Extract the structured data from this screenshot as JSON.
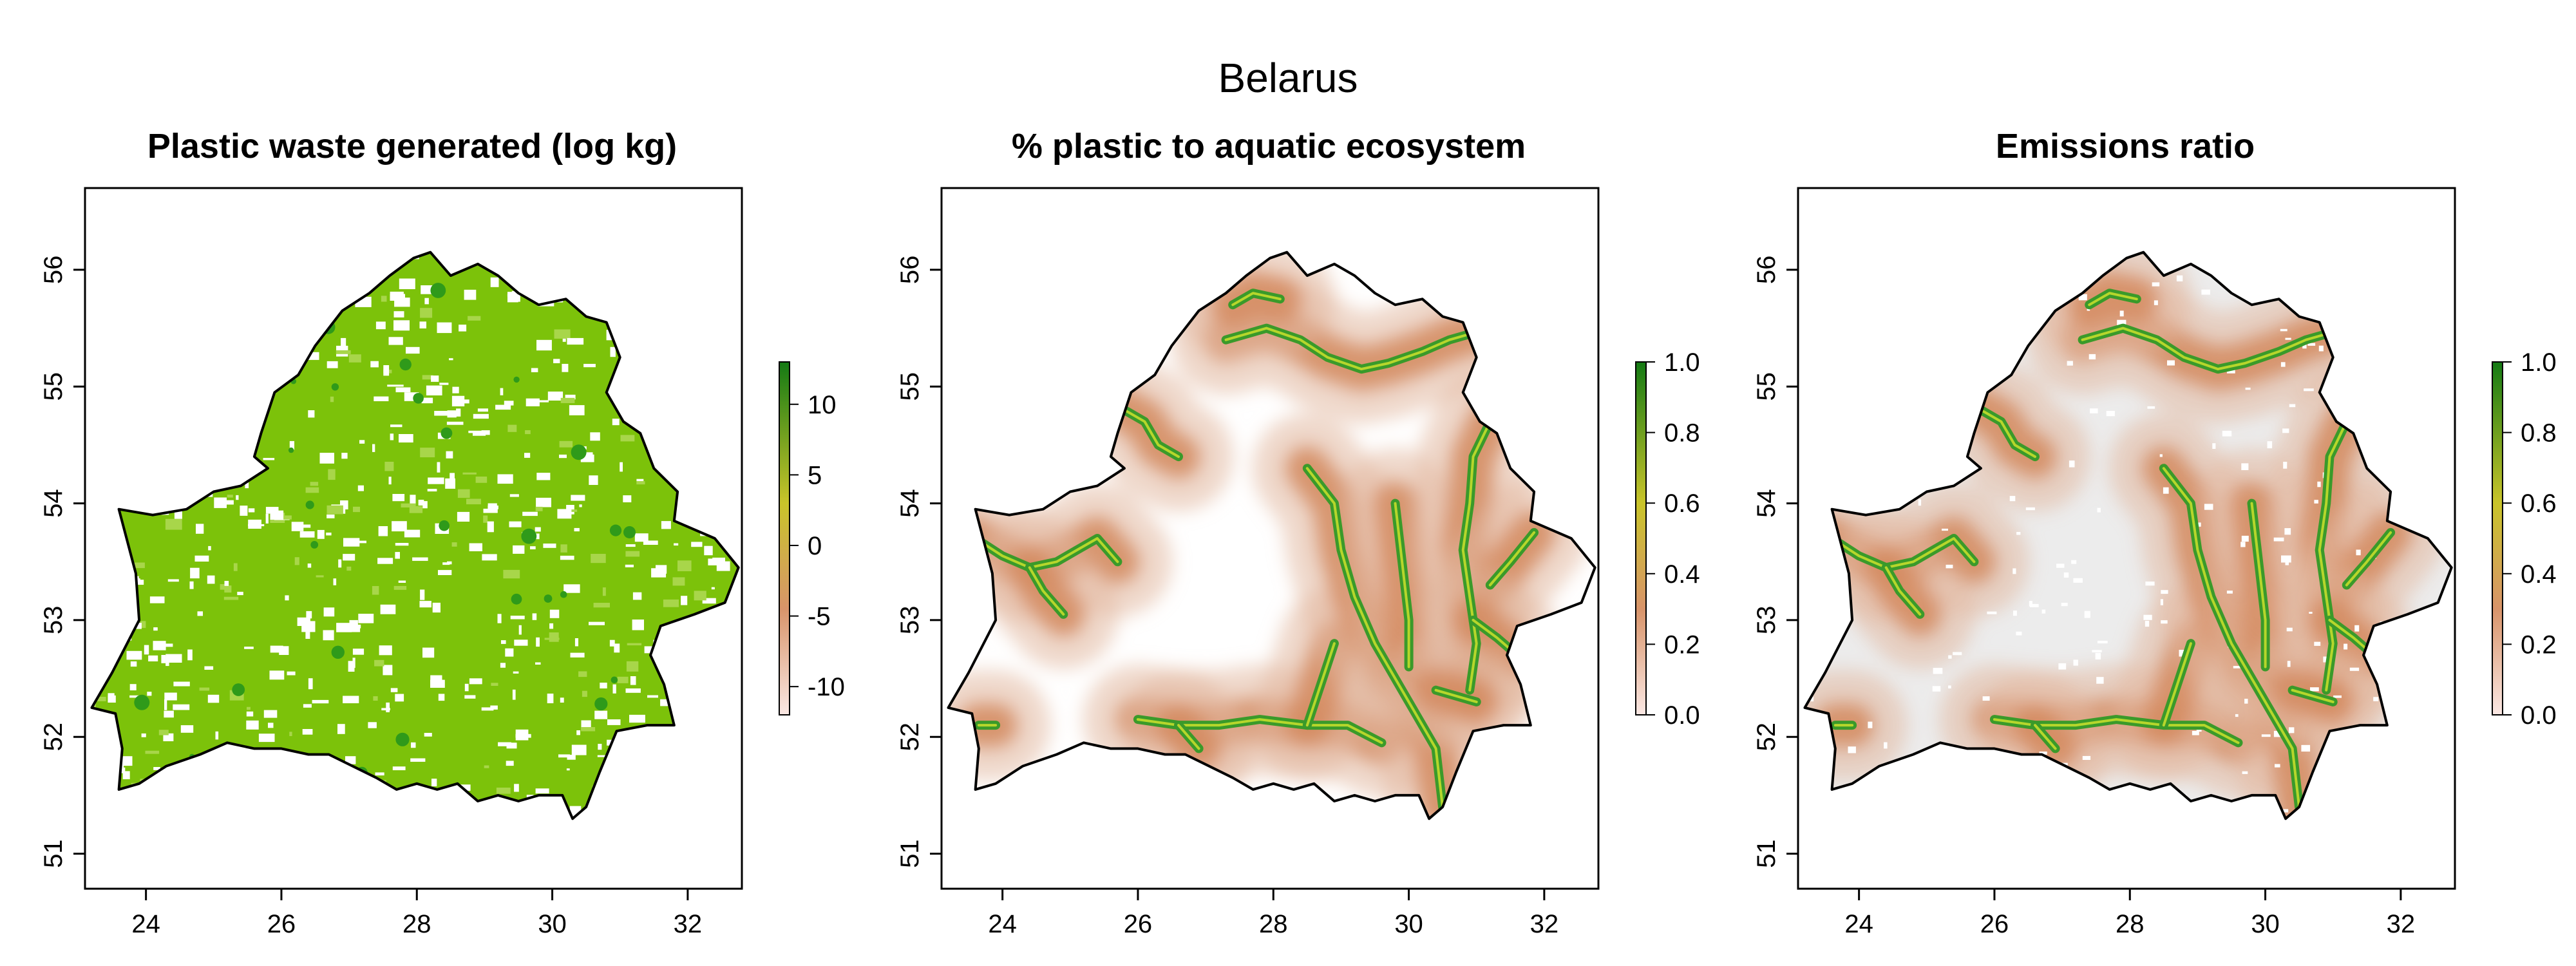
{
  "main_title": "Belarus",
  "colors": {
    "background": "#ffffff",
    "land_background": "#ececec",
    "river": "#3a9a2a",
    "river_core": "#b6d62c",
    "scale_low": "#fbe8e4",
    "scale_mid": "#d8946a",
    "scale_yellow": "#c9c42a",
    "scale_high": "#147a14"
  },
  "panels": [
    {
      "title": "Plastic waste generated (log kg)",
      "legend_ticks": [
        "10",
        "5",
        "0",
        "-5",
        "-10"
      ],
      "legend_values": [
        10,
        5,
        0,
        -5,
        -10
      ],
      "legend_range": [
        -12,
        13
      ],
      "fill_style": "dense-green"
    },
    {
      "title": "% plastic to aquatic ecosystem",
      "legend_ticks": [
        "1.0",
        "0.8",
        "0.6",
        "0.4",
        "0.2",
        "0.0"
      ],
      "legend_values": [
        1.0,
        0.8,
        0.6,
        0.4,
        0.2,
        0.0
      ],
      "legend_range": [
        0,
        1
      ],
      "fill_style": "rivers-white"
    },
    {
      "title": "Emissions ratio",
      "legend_ticks": [
        "1.0",
        "0.8",
        "0.6",
        "0.4",
        "0.2",
        "0.0"
      ],
      "legend_values": [
        1.0,
        0.8,
        0.6,
        0.4,
        0.2,
        0.0
      ],
      "legend_range": [
        0,
        1
      ],
      "fill_style": "rivers-grey"
    }
  ],
  "axes": {
    "x_ticks": [
      "24",
      "26",
      "28",
      "30",
      "32"
    ],
    "x_values": [
      24,
      26,
      28,
      30,
      32
    ],
    "y_ticks": [
      "51",
      "52",
      "53",
      "54",
      "55",
      "56"
    ],
    "y_values": [
      51,
      52,
      53,
      54,
      55,
      56
    ],
    "xlim": [
      23.1,
      32.8
    ],
    "ylim": [
      50.7,
      56.7
    ]
  },
  "border": {
    "lon_lat": [
      [
        23.6,
        53.95
      ],
      [
        24.1,
        53.9
      ],
      [
        24.6,
        53.95
      ],
      [
        25.0,
        54.1
      ],
      [
        25.4,
        54.15
      ],
      [
        25.8,
        54.3
      ],
      [
        25.6,
        54.4
      ],
      [
        25.7,
        54.6
      ],
      [
        25.9,
        54.95
      ],
      [
        26.25,
        55.1
      ],
      [
        26.5,
        55.35
      ],
      [
        26.9,
        55.65
      ],
      [
        27.3,
        55.8
      ],
      [
        27.6,
        55.95
      ],
      [
        27.95,
        56.1
      ],
      [
        28.2,
        56.15
      ],
      [
        28.5,
        55.95
      ],
      [
        28.9,
        56.05
      ],
      [
        29.2,
        55.95
      ],
      [
        29.5,
        55.8
      ],
      [
        29.8,
        55.7
      ],
      [
        30.2,
        55.75
      ],
      [
        30.5,
        55.6
      ],
      [
        30.8,
        55.55
      ],
      [
        31.0,
        55.25
      ],
      [
        30.8,
        54.95
      ],
      [
        31.05,
        54.7
      ],
      [
        31.3,
        54.6
      ],
      [
        31.5,
        54.3
      ],
      [
        31.85,
        54.1
      ],
      [
        31.8,
        53.85
      ],
      [
        32.4,
        53.7
      ],
      [
        32.75,
        53.45
      ],
      [
        32.55,
        53.15
      ],
      [
        32.1,
        53.05
      ],
      [
        31.6,
        52.95
      ],
      [
        31.45,
        52.7
      ],
      [
        31.65,
        52.45
      ],
      [
        31.8,
        52.1
      ],
      [
        31.4,
        52.1
      ],
      [
        30.95,
        52.05
      ],
      [
        30.7,
        51.7
      ],
      [
        30.5,
        51.4
      ],
      [
        30.3,
        51.3
      ],
      [
        30.15,
        51.5
      ],
      [
        29.8,
        51.5
      ],
      [
        29.5,
        51.45
      ],
      [
        29.2,
        51.5
      ],
      [
        28.9,
        51.45
      ],
      [
        28.6,
        51.6
      ],
      [
        28.3,
        51.55
      ],
      [
        28.0,
        51.6
      ],
      [
        27.7,
        51.55
      ],
      [
        27.4,
        51.65
      ],
      [
        27.05,
        51.75
      ],
      [
        26.7,
        51.85
      ],
      [
        26.4,
        51.85
      ],
      [
        26.0,
        51.9
      ],
      [
        25.6,
        51.9
      ],
      [
        25.2,
        51.95
      ],
      [
        24.8,
        51.85
      ],
      [
        24.3,
        51.75
      ],
      [
        23.9,
        51.6
      ],
      [
        23.6,
        51.55
      ],
      [
        23.65,
        51.9
      ],
      [
        23.55,
        52.2
      ],
      [
        23.2,
        52.25
      ],
      [
        23.5,
        52.55
      ],
      [
        23.9,
        53.0
      ],
      [
        23.85,
        53.4
      ],
      [
        23.6,
        53.95
      ]
    ]
  },
  "rivers": [
    [
      [
        23.6,
        53.7
      ],
      [
        24.0,
        53.55
      ],
      [
        24.4,
        53.45
      ],
      [
        24.8,
        53.5
      ],
      [
        25.1,
        53.6
      ],
      [
        25.4,
        53.7
      ],
      [
        25.7,
        53.5
      ]
    ],
    [
      [
        24.4,
        53.45
      ],
      [
        24.6,
        53.25
      ],
      [
        24.9,
        53.05
      ]
    ],
    [
      [
        23.65,
        52.1
      ],
      [
        23.9,
        52.1
      ]
    ],
    [
      [
        26.0,
        52.15
      ],
      [
        26.6,
        52.1
      ],
      [
        27.2,
        52.1
      ],
      [
        27.8,
        52.15
      ],
      [
        28.5,
        52.1
      ],
      [
        29.1,
        52.1
      ],
      [
        29.6,
        51.95
      ]
    ],
    [
      [
        26.6,
        52.1
      ],
      [
        26.9,
        51.9
      ]
    ],
    [
      [
        28.5,
        52.1
      ],
      [
        28.7,
        52.45
      ],
      [
        28.9,
        52.8
      ]
    ],
    [
      [
        28.5,
        54.3
      ],
      [
        28.9,
        54.0
      ],
      [
        29.0,
        53.6
      ],
      [
        29.2,
        53.2
      ],
      [
        29.5,
        52.8
      ],
      [
        29.8,
        52.5
      ],
      [
        30.1,
        52.2
      ],
      [
        30.4,
        51.9
      ],
      [
        30.5,
        51.4
      ]
    ],
    [
      [
        29.8,
        54.0
      ],
      [
        29.9,
        53.5
      ],
      [
        30.0,
        53.0
      ],
      [
        30.0,
        52.6
      ]
    ],
    [
      [
        31.2,
        54.7
      ],
      [
        30.95,
        54.4
      ],
      [
        30.9,
        54.0
      ],
      [
        30.8,
        53.6
      ],
      [
        30.9,
        53.2
      ],
      [
        31.0,
        52.8
      ],
      [
        30.9,
        52.4
      ]
    ],
    [
      [
        31.85,
        53.75
      ],
      [
        31.5,
        53.5
      ],
      [
        31.2,
        53.3
      ]
    ],
    [
      [
        27.3,
        55.4
      ],
      [
        27.9,
        55.5
      ],
      [
        28.4,
        55.4
      ],
      [
        28.8,
        55.25
      ],
      [
        29.3,
        55.15
      ],
      [
        29.7,
        55.2
      ],
      [
        30.2,
        55.3
      ],
      [
        30.6,
        55.4
      ],
      [
        30.9,
        55.45
      ]
    ],
    [
      [
        27.4,
        55.7
      ],
      [
        27.7,
        55.8
      ],
      [
        28.1,
        55.75
      ]
    ],
    [
      [
        25.8,
        54.8
      ],
      [
        26.1,
        54.7
      ],
      [
        26.3,
        54.5
      ],
      [
        26.6,
        54.4
      ]
    ],
    [
      [
        30.95,
        53.0
      ],
      [
        31.3,
        52.85
      ],
      [
        31.6,
        52.7
      ]
    ],
    [
      [
        30.4,
        52.4
      ],
      [
        30.7,
        52.35
      ],
      [
        31.0,
        52.3
      ]
    ]
  ]
}
